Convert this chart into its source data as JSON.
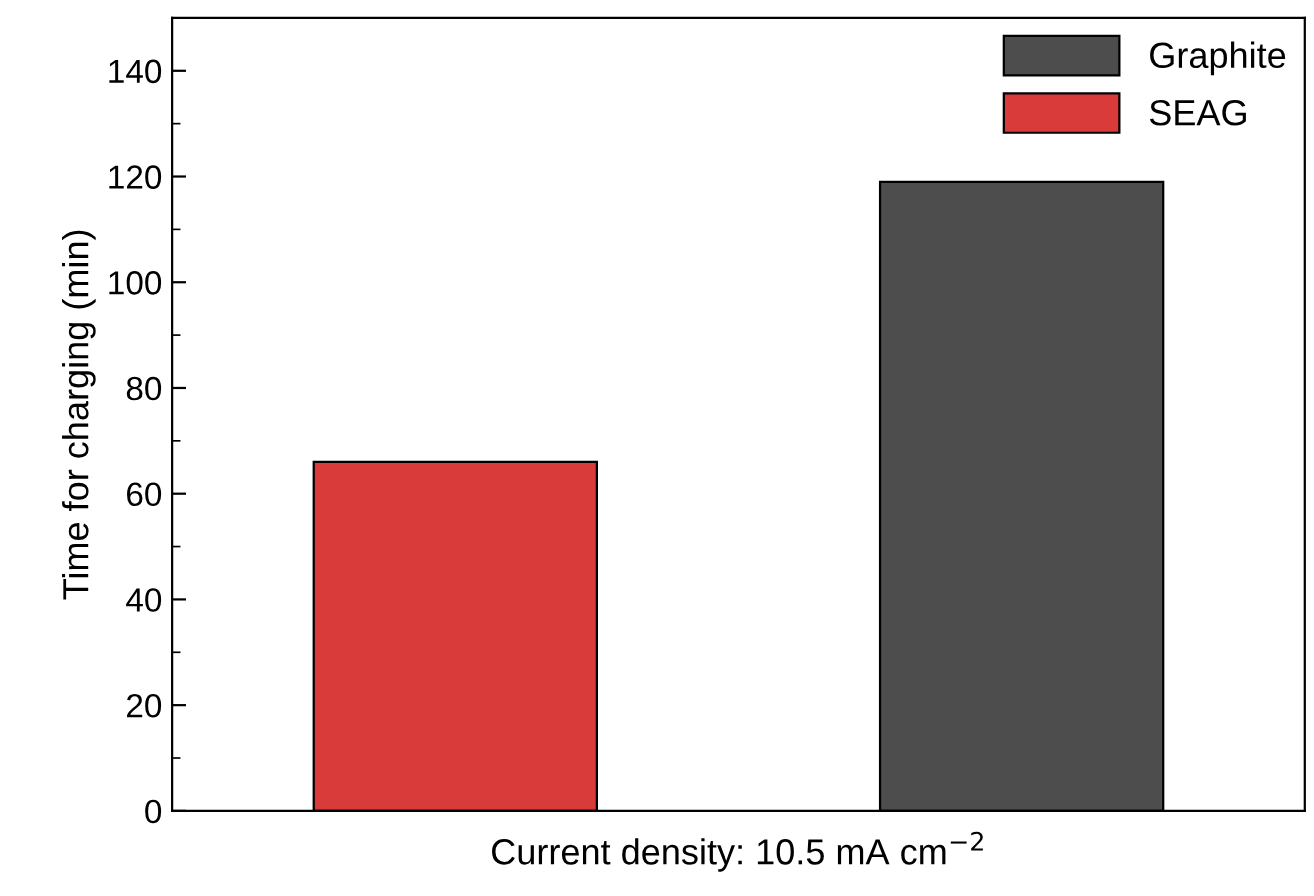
{
  "chart_data": {
    "type": "bar",
    "xlabel": "Current density: 10.5 mA cm$^{−2}$",
    "ylabel": "Time for charging (min)",
    "categories": [
      null,
      null
    ],
    "series": [
      {
        "name": "Graphite",
        "color": "#4d4d4d",
        "values": [
          null,
          119
        ]
      },
      {
        "name": "SEAG",
        "color": "#d93a3a",
        "values": [
          66,
          null
        ]
      }
    ],
    "ylim": [
      0,
      150
    ],
    "yticks": [
      0,
      20,
      40,
      60,
      80,
      100,
      120,
      140
    ],
    "legend": "top right",
    "grid": false
  }
}
